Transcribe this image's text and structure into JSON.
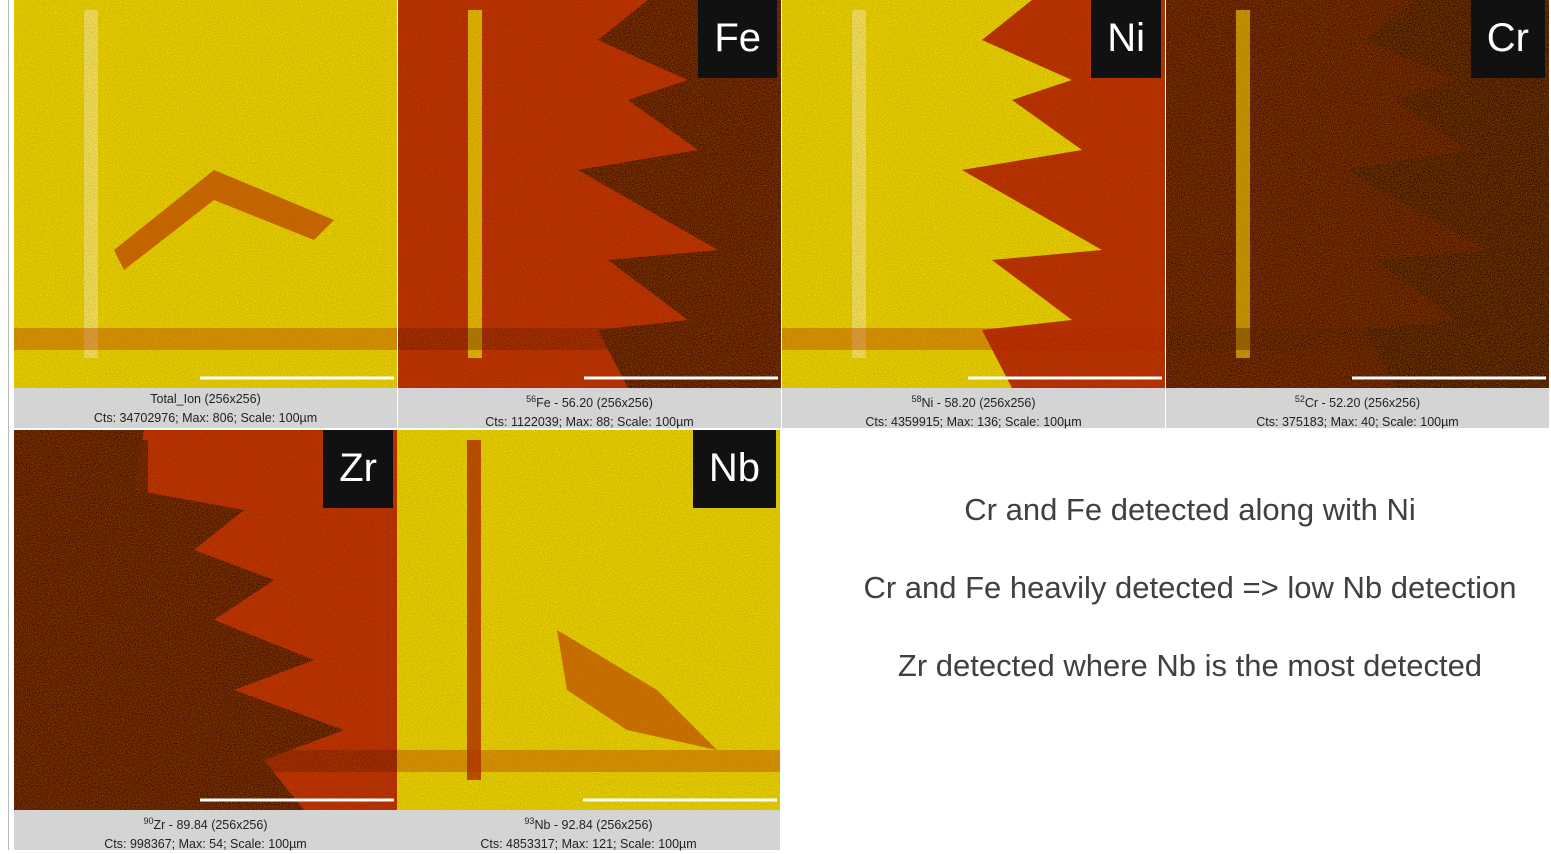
{
  "panels": [
    {
      "label": null,
      "mass": null,
      "name": "Total_Ion (256x256)",
      "stats": "Cts: 34702976; Max: 806; Scale: 100µm"
    },
    {
      "label": "Fe",
      "mass": "56",
      "name": "Fe - 56.20 (256x256)",
      "stats": "Cts: 1122039; Max: 88; Scale: 100µm"
    },
    {
      "label": "Ni",
      "mass": "58",
      "name": "Ni - 58.20 (256x256)",
      "stats": "Cts: 4359915; Max: 136; Scale: 100µm"
    },
    {
      "label": "Cr",
      "mass": "52",
      "name": "Cr - 52.20 (256x256)",
      "stats": "Cts: 375183; Max: 40; Scale: 100µm"
    },
    {
      "label": "Zr",
      "mass": "90",
      "name": "Zr - 89.84 (256x256)",
      "stats": "Cts: 998367; Max: 54; Scale: 100µm"
    },
    {
      "label": "Nb",
      "mass": "93",
      "name": "Nb - 92.84 (256x256)",
      "stats": "Cts: 4853317; Max: 121; Scale: 100µm"
    }
  ],
  "notes": [
    "Cr and Fe detected along with Ni",
    "Cr and Fe heavily detected => low Nb detection",
    "Zr detected where Nb is the most detected"
  ]
}
